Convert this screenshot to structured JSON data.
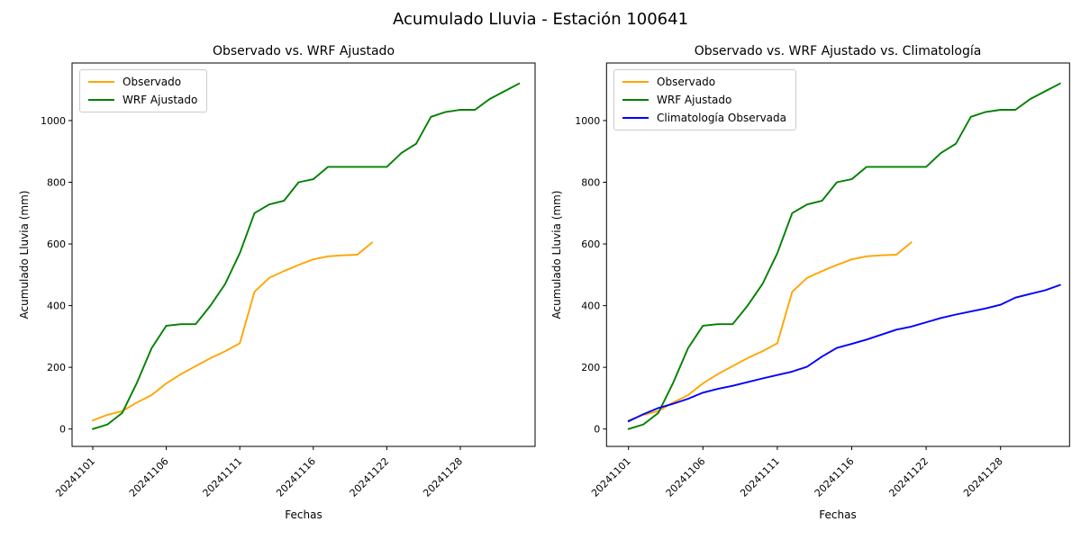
{
  "figure": {
    "suptitle": "Acumulado Lluvia - Estación 100641"
  },
  "chart_data": [
    {
      "type": "line",
      "title": "Observado vs. WRF Ajustado",
      "xlabel": "Fechas",
      "ylabel": "Acumulado Lluvia (mm)",
      "x_tick_labels": [
        "20241101",
        "20241106",
        "20241111",
        "20241116",
        "20241122",
        "20241128"
      ],
      "x_tick_indices": [
        0,
        5,
        10,
        15,
        20,
        25
      ],
      "y_ticks": [
        0,
        200,
        400,
        600,
        800,
        1000
      ],
      "ylim": [
        -56,
        1187
      ],
      "grid": false,
      "legend_position": "upper left",
      "series": [
        {
          "name": "Observado",
          "color": "#FFA500",
          "values": [
            28,
            46,
            58,
            86,
            110,
            148,
            178,
            204,
            230,
            252,
            278,
            445,
            490,
            512,
            532,
            550,
            560,
            563,
            565,
            605
          ]
        },
        {
          "name": "WRF Ajustado",
          "color": "#008000",
          "values": [
            0,
            15,
            52,
            150,
            262,
            335,
            340,
            340,
            400,
            470,
            570,
            700,
            728,
            740,
            800,
            810,
            850,
            850,
            850,
            850,
            850,
            895,
            925,
            1012,
            1028,
            1035,
            1035,
            1070,
            1095,
            1120
          ]
        }
      ]
    },
    {
      "type": "line",
      "title": "Observado vs. WRF Ajustado vs. Climatología",
      "xlabel": "Fechas",
      "ylabel": "Acumulado Lluvia (mm)",
      "x_tick_labels": [
        "20241101",
        "20241106",
        "20241111",
        "20241116",
        "20241122",
        "20241128"
      ],
      "x_tick_indices": [
        0,
        5,
        10,
        15,
        20,
        25
      ],
      "y_ticks": [
        0,
        200,
        400,
        600,
        800,
        1000
      ],
      "ylim": [
        -56,
        1187
      ],
      "grid": false,
      "legend_position": "upper left",
      "series": [
        {
          "name": "Observado",
          "color": "#FFA500",
          "values": [
            28,
            46,
            58,
            86,
            110,
            148,
            178,
            204,
            230,
            252,
            278,
            445,
            490,
            512,
            532,
            550,
            560,
            563,
            565,
            605
          ]
        },
        {
          "name": "WRF Ajustado",
          "color": "#008000",
          "values": [
            0,
            15,
            52,
            150,
            262,
            335,
            340,
            340,
            400,
            470,
            570,
            700,
            728,
            740,
            800,
            810,
            850,
            850,
            850,
            850,
            850,
            895,
            925,
            1012,
            1028,
            1035,
            1035,
            1070,
            1095,
            1120
          ]
        },
        {
          "name": "Climatología Observada",
          "color": "#0000FF",
          "values": [
            25,
            48,
            68,
            82,
            98,
            118,
            130,
            140,
            152,
            164,
            175,
            186,
            202,
            235,
            263,
            276,
            290,
            306,
            322,
            332,
            346,
            360,
            371,
            381,
            391,
            403,
            426,
            438,
            450,
            467
          ]
        }
      ]
    }
  ]
}
